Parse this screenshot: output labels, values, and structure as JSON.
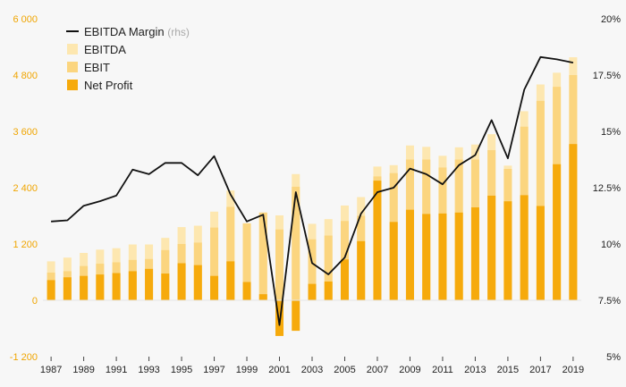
{
  "chart_data": {
    "type": "bar",
    "title": "",
    "x": [
      1987,
      1988,
      1989,
      1990,
      1991,
      1992,
      1993,
      1994,
      1995,
      1996,
      1997,
      1998,
      1999,
      2000,
      2001,
      2002,
      2003,
      2004,
      2005,
      2006,
      2007,
      2008,
      2009,
      2010,
      2011,
      2012,
      2013,
      2014,
      2015,
      2016,
      2017,
      2018,
      2019
    ],
    "xticks": [
      "1987",
      "1989",
      "1991",
      "1993",
      "1995",
      "1997",
      "1999",
      "2001",
      "2003",
      "2005",
      "2007",
      "2009",
      "2011",
      "2013",
      "2015",
      "2017",
      "2019"
    ],
    "ylim_left": [
      -1200,
      6000
    ],
    "yticks_left": [
      "-1 200",
      "0",
      "1 200",
      "2 400",
      "3 600",
      "4 800",
      "6 000"
    ],
    "ylim_right": [
      5,
      20
    ],
    "yticks_right": [
      "5%",
      "7.5%",
      "10%",
      "12.5%",
      "15%",
      "17.5%",
      "20%"
    ],
    "series": [
      {
        "name": "EBITDA",
        "axis": "left",
        "values": [
          830,
          910,
          1010,
          1080,
          1110,
          1190,
          1190,
          1330,
          1560,
          1590,
          1890,
          2340,
          1640,
          1870,
          1810,
          2690,
          1630,
          1730,
          2020,
          2200,
          2850,
          2880,
          3300,
          3270,
          3080,
          3260,
          3320,
          3540,
          2870,
          4030,
          4600,
          4850,
          5180
        ]
      },
      {
        "name": "EBIT",
        "axis": "left",
        "values": [
          590,
          620,
          730,
          780,
          810,
          860,
          880,
          1070,
          1200,
          1230,
          1550,
          1990,
          1640,
          1870,
          1510,
          2420,
          1300,
          1380,
          1690,
          1800,
          2640,
          2710,
          3000,
          3000,
          2830,
          3000,
          3000,
          3200,
          2800,
          3700,
          4250,
          4550,
          4800
        ]
      },
      {
        "name": "Net Profit",
        "axis": "left",
        "values": [
          430,
          490,
          520,
          550,
          580,
          620,
          670,
          570,
          790,
          750,
          520,
          830,
          390,
          130,
          -760,
          -650,
          350,
          400,
          870,
          1260,
          2550,
          1670,
          1930,
          1840,
          1850,
          1870,
          1980,
          2230,
          2110,
          2240,
          2010,
          2900,
          3330
        ]
      },
      {
        "name": "EBITDA Margin",
        "axis": "right",
        "suffix": "(rhs)",
        "values": [
          11.0,
          11.05,
          11.7,
          11.9,
          12.15,
          13.3,
          13.1,
          13.6,
          13.6,
          13.05,
          13.9,
          12.2,
          11.0,
          11.3,
          6.4,
          12.3,
          9.15,
          8.65,
          9.4,
          11.35,
          12.3,
          12.5,
          13.35,
          13.1,
          12.65,
          13.5,
          13.95,
          15.5,
          13.8,
          16.85,
          18.3,
          18.2,
          18.05
        ]
      }
    ],
    "colors": {
      "ebitda": "#fde7b0",
      "ebit": "#fbd57f",
      "net_profit": "#f6aa0c",
      "margin": "#111111"
    },
    "legend_position": "top-left",
    "grid": false
  }
}
